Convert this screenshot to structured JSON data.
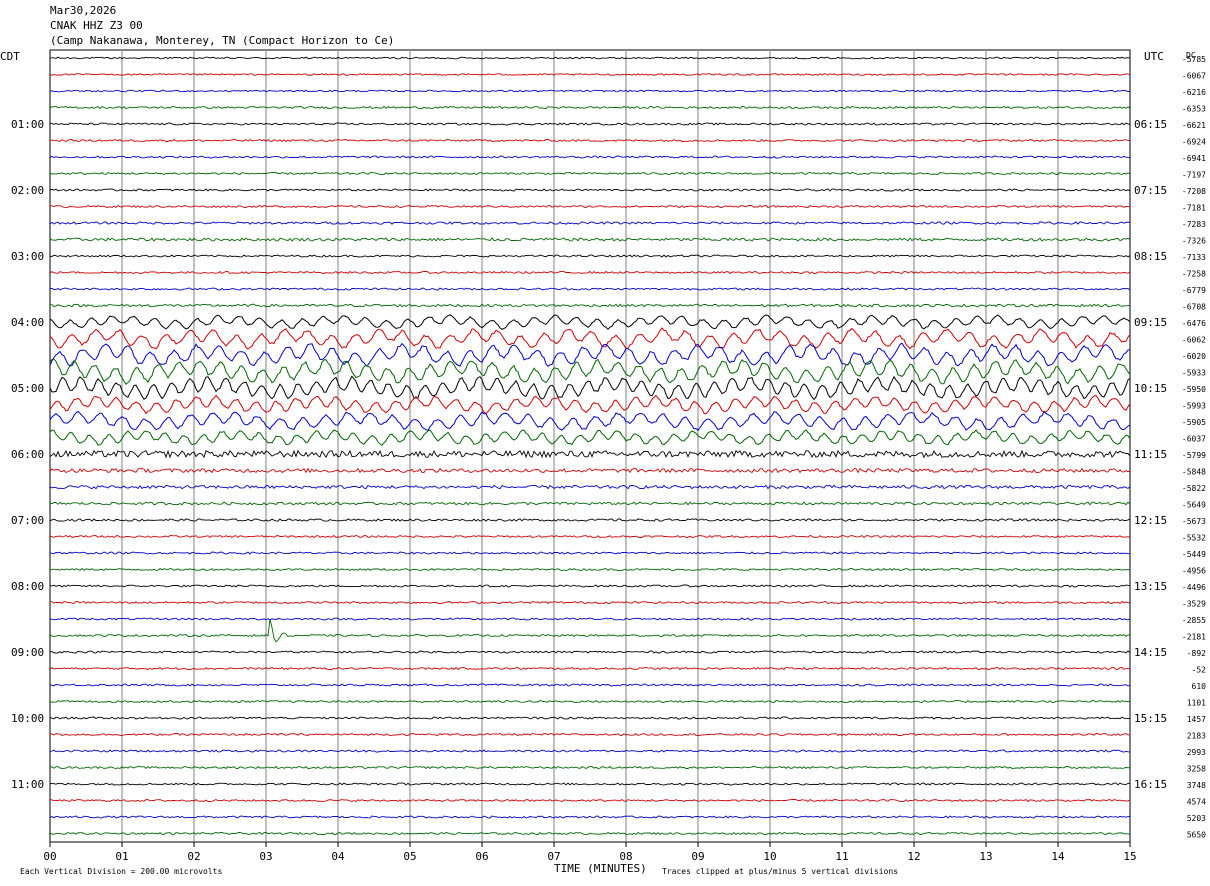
{
  "header": {
    "date": "Mar30,2026",
    "channel": "CNAK HHZ Z3 00",
    "location": "(Camp Nakanawa, Monterey, TN (Compact Horizon to Ce)"
  },
  "labels": {
    "left_tz": "CDT",
    "right_tz": "UTC",
    "dc_label": "DC"
  },
  "footer": {
    "scale": "Each Vertical Division =  200.00 microvolts",
    "xlabel": "TIME (MINUTES)",
    "clip_note": "Traces clipped at plus/minus 5 vertical divisions"
  },
  "colors": {
    "trace_cycle": [
      "#000000",
      "#cc0000",
      "#0000cc",
      "#006600"
    ],
    "grid": "#808080"
  },
  "chart_data": {
    "type": "line",
    "title": "Mar30,2026",
    "xlabel": "TIME (MINUTES)",
    "xlim": [
      0,
      15
    ],
    "x_ticks": [
      "00",
      "01",
      "02",
      "03",
      "04",
      "05",
      "06",
      "07",
      "08",
      "09",
      "10",
      "11",
      "12",
      "13",
      "14",
      "15"
    ],
    "rows_per_hour": 4,
    "trace_count": 48,
    "left_hour_labels": [
      "01:00",
      "02:00",
      "03:00",
      "04:00",
      "05:00",
      "06:00",
      "07:00",
      "08:00",
      "09:00",
      "10:00",
      "11:00"
    ],
    "right_hour_labels": [
      "06:15",
      "07:15",
      "08:15",
      "09:15",
      "10:15",
      "11:15",
      "12:15",
      "13:15",
      "14:15",
      "15:15",
      "16:15"
    ],
    "dc_offsets": [
      "-5785",
      "-6067",
      "-6216",
      "-6353",
      "-6621",
      "-6924",
      "-6941",
      "-7197",
      "-7208",
      "-7181",
      "-7283",
      "-7326",
      "-7133",
      "-7258",
      "-6779",
      "-6708",
      "-6476",
      "-6062",
      "-6020",
      "-5933",
      "-5950",
      "-5993",
      "-5905",
      "-6037",
      "-5799",
      "-5848",
      "-5822",
      "-5649",
      "-5673",
      "-5532",
      "-5449",
      "-4956",
      "-4496",
      "-3529",
      "-2855",
      "-2181",
      "-892",
      "-52",
      "610",
      "1101",
      "1457",
      "2183",
      "2993",
      "3258",
      "3748",
      "4574",
      "5203",
      "5650"
    ],
    "trace_amplitude": [
      0.25,
      0.25,
      0.25,
      0.3,
      0.3,
      0.3,
      0.3,
      0.3,
      0.3,
      0.3,
      0.35,
      0.45,
      0.3,
      0.3,
      0.3,
      0.4,
      2.2,
      3.2,
      3.6,
      3.8,
      3.6,
      2.8,
      3.0,
      2.4,
      1.0,
      0.6,
      0.5,
      0.4,
      0.35,
      0.3,
      0.3,
      0.3,
      0.3,
      0.3,
      0.3,
      0.3,
      0.3,
      0.3,
      0.3,
      0.3,
      0.3,
      0.3,
      0.3,
      0.3,
      0.3,
      0.3,
      0.3,
      0.3
    ],
    "events": [
      {
        "trace": 35,
        "minute": 3.05,
        "peak_divisions": 5,
        "duration_min": 0.45
      }
    ]
  }
}
